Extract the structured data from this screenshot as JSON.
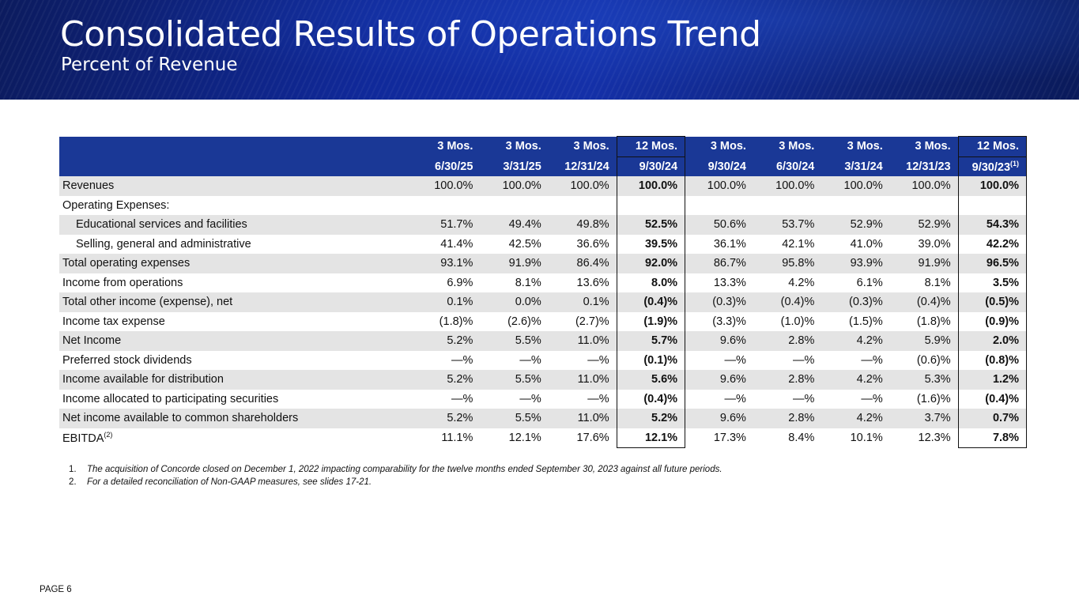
{
  "header": {
    "title": "Consolidated Results of Operations Trend",
    "subtitle": "Percent of Revenue"
  },
  "table": {
    "columns": [
      {
        "line1": "3 Mos.",
        "line2": "6/30/25",
        "sup": "",
        "boxed": false
      },
      {
        "line1": "3 Mos.",
        "line2": "3/31/25",
        "sup": "",
        "boxed": false
      },
      {
        "line1": "3 Mos.",
        "line2": "12/31/24",
        "sup": "",
        "boxed": false
      },
      {
        "line1": "12 Mos.",
        "line2": "9/30/24",
        "sup": "",
        "boxed": true
      },
      {
        "line1": "3 Mos.",
        "line2": "9/30/24",
        "sup": "",
        "boxed": false
      },
      {
        "line1": "3 Mos.",
        "line2": "6/30/24",
        "sup": "",
        "boxed": false
      },
      {
        "line1": "3 Mos.",
        "line2": "3/31/24",
        "sup": "",
        "boxed": false
      },
      {
        "line1": "3 Mos.",
        "line2": "12/31/23",
        "sup": "",
        "boxed": false
      },
      {
        "line1": "12 Mos.",
        "line2": "9/30/23",
        "sup": "(1)",
        "boxed": true
      }
    ],
    "rows": [
      {
        "label": "Revenues",
        "sup": "",
        "indent": false,
        "shade": true,
        "values": [
          "100.0%",
          "100.0%",
          "100.0%",
          "100.0%",
          "100.0%",
          "100.0%",
          "100.0%",
          "100.0%",
          "100.0%"
        ]
      },
      {
        "label": "Operating Expenses:",
        "sup": "",
        "indent": false,
        "shade": false,
        "values": [
          "",
          "",
          "",
          "",
          "",
          "",
          "",
          "",
          ""
        ]
      },
      {
        "label": "Educational services and facilities",
        "sup": "",
        "indent": true,
        "shade": true,
        "values": [
          "51.7%",
          "49.4%",
          "49.8%",
          "52.5%",
          "50.6%",
          "53.7%",
          "52.9%",
          "52.9%",
          "54.3%"
        ]
      },
      {
        "label": "Selling, general and administrative",
        "sup": "",
        "indent": true,
        "shade": false,
        "values": [
          "41.4%",
          "42.5%",
          "36.6%",
          "39.5%",
          "36.1%",
          "42.1%",
          "41.0%",
          "39.0%",
          "42.2%"
        ]
      },
      {
        "label": "Total operating expenses",
        "sup": "",
        "indent": false,
        "shade": true,
        "values": [
          "93.1%",
          "91.9%",
          "86.4%",
          "92.0%",
          "86.7%",
          "95.8%",
          "93.9%",
          "91.9%",
          "96.5%"
        ]
      },
      {
        "label": "Income from operations",
        "sup": "",
        "indent": false,
        "shade": false,
        "values": [
          "6.9%",
          "8.1%",
          "13.6%",
          "8.0%",
          "13.3%",
          "4.2%",
          "6.1%",
          "8.1%",
          "3.5%"
        ]
      },
      {
        "label": "Total other income (expense), net",
        "sup": "",
        "indent": false,
        "shade": true,
        "values": [
          "0.1%",
          "0.0%",
          "0.1%",
          "(0.4)%",
          "(0.3)%",
          "(0.4)%",
          "(0.3)%",
          "(0.4)%",
          "(0.5)%"
        ]
      },
      {
        "label": "Income tax expense",
        "sup": "",
        "indent": false,
        "shade": false,
        "values": [
          "(1.8)%",
          "(2.6)%",
          "(2.7)%",
          "(1.9)%",
          "(3.3)%",
          "(1.0)%",
          "(1.5)%",
          "(1.8)%",
          "(0.9)%"
        ]
      },
      {
        "label": "Net Income",
        "sup": "",
        "indent": false,
        "shade": true,
        "values": [
          "5.2%",
          "5.5%",
          "11.0%",
          "5.7%",
          "9.6%",
          "2.8%",
          "4.2%",
          "5.9%",
          "2.0%"
        ]
      },
      {
        "label": "Preferred stock dividends",
        "sup": "",
        "indent": false,
        "shade": false,
        "values": [
          "—%",
          "—%",
          "—%",
          "(0.1)%",
          "—%",
          "—%",
          "—%",
          "(0.6)%",
          "(0.8)%"
        ]
      },
      {
        "label": "Income available for distribution",
        "sup": "",
        "indent": false,
        "shade": true,
        "values": [
          "5.2%",
          "5.5%",
          "11.0%",
          "5.6%",
          "9.6%",
          "2.8%",
          "4.2%",
          "5.3%",
          "1.2%"
        ]
      },
      {
        "label": "Income allocated to participating securities",
        "sup": "",
        "indent": false,
        "shade": false,
        "values": [
          "—%",
          "—%",
          "—%",
          "(0.4)%",
          "—%",
          "—%",
          "—%",
          "(1.6)%",
          "(0.4)%"
        ]
      },
      {
        "label": "Net income available to common shareholders",
        "sup": "",
        "indent": false,
        "shade": true,
        "values": [
          "5.2%",
          "5.5%",
          "11.0%",
          "5.2%",
          "9.6%",
          "2.8%",
          "4.2%",
          "3.7%",
          "0.7%"
        ]
      },
      {
        "label": "EBITDA",
        "sup": "(2)",
        "indent": false,
        "shade": false,
        "values": [
          "11.1%",
          "12.1%",
          "17.6%",
          "12.1%",
          "17.3%",
          "8.4%",
          "10.1%",
          "12.3%",
          "7.8%"
        ]
      }
    ]
  },
  "footnotes": [
    {
      "num": "1.",
      "text": "The acquisition of Concorde closed on December 1, 2022 impacting comparability for the twelve months ended September 30, 2023 against all future periods."
    },
    {
      "num": "2.",
      "text": "For a detailed reconciliation of Non-GAAP measures, see slides 17-21."
    }
  ],
  "page_label": "PAGE 6"
}
